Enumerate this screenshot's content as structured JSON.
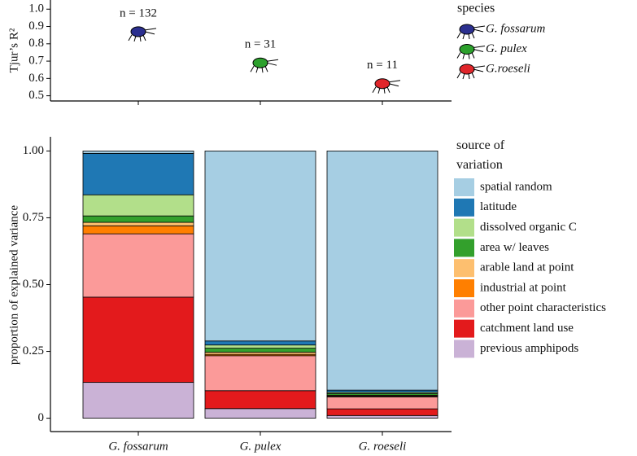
{
  "chart_data": [
    {
      "type": "scatter",
      "ylabel": "Tjur’s R²",
      "legend_title": "species",
      "series": [
        {
          "name": "G. fossarum",
          "color": "#2b2f8f",
          "values": [
            0.87
          ],
          "label": "n = 132"
        },
        {
          "name": "G. pulex",
          "color": "#2ca02c",
          "values": [
            0.69
          ],
          "label": "n = 31"
        },
        {
          "name": "G.roeseli",
          "color": "#e0262b",
          "values": [
            0.57
          ],
          "label": "n = 11"
        }
      ],
      "ylim": [
        0.47,
        1.02
      ],
      "yticks": [
        0.5,
        0.6,
        0.7,
        0.8,
        0.9,
        {
          "value": 1,
          "label": "1.0"
        }
      ]
    },
    {
      "type": "stacked_bar",
      "ylabel": "proportion of explained variance",
      "legend_title": "source of variation",
      "categories": [
        "G. fossarum",
        "G. pulex",
        "G. roeseli"
      ],
      "series": [
        {
          "name": "previous amphipods",
          "color": "#cab2d6",
          "values": [
            0.134,
            0.036,
            0.01
          ]
        },
        {
          "name": "catchment land use",
          "color": "#e31a1c",
          "values": [
            0.319,
            0.067,
            0.025
          ]
        },
        {
          "name": "other point characteristics",
          "color": "#fb9a99",
          "values": [
            0.237,
            0.131,
            0.045
          ]
        },
        {
          "name": "industrial at point",
          "color": "#ff7f00",
          "values": [
            0.03,
            0.005,
            0.003
          ]
        },
        {
          "name": "arable land at point",
          "color": "#fdbf6f",
          "values": [
            0.013,
            0.008,
            0.003
          ]
        },
        {
          "name": "area w/ leaves",
          "color": "#33a02c",
          "values": [
            0.024,
            0.015,
            0.006
          ]
        },
        {
          "name": "dissolved organic C",
          "color": "#b2df8a",
          "values": [
            0.079,
            0.012,
            0.005
          ]
        },
        {
          "name": "latitude",
          "color": "#1f78b4",
          "values": [
            0.155,
            0.015,
            0.008
          ]
        },
        {
          "name": "spatial random",
          "color": "#a6cee3",
          "values": [
            0.009,
            0.711,
            0.895
          ]
        }
      ],
      "ylim": [
        -0.05,
        1.05
      ],
      "yticks": [
        0,
        0.25,
        {
          "value": 0.5,
          "label": "0.50"
        },
        0.75,
        {
          "value": 1,
          "label": "1.00"
        }
      ]
    }
  ]
}
